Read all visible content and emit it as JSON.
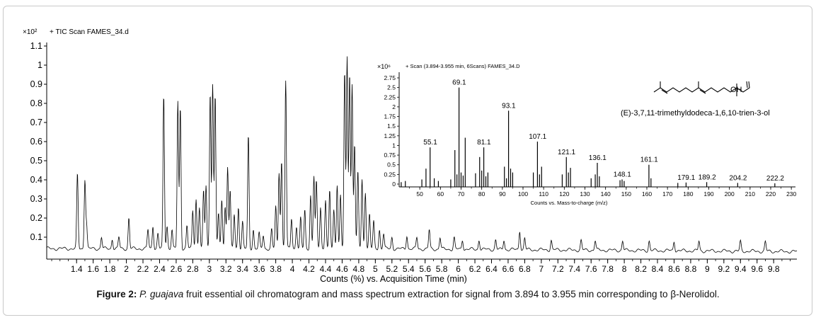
{
  "chart_data": [
    {
      "type": "line",
      "title": "+ TIC Scan FAMES_34.d",
      "y_multiplier": "×10²",
      "xlabel": "Counts (%) vs. Acquisition Time (min)",
      "ylabel": "",
      "xlim": [
        1.04,
        10.08
      ],
      "ylim": [
        0,
        1.15
      ],
      "grid": false,
      "y_ticks": [
        0.1,
        0.2,
        0.3,
        0.4,
        0.5,
        0.6,
        0.7,
        0.8,
        0.9,
        1,
        1.1
      ],
      "x_ticks": [
        1.4,
        1.6,
        1.8,
        2,
        2.2,
        2.4,
        2.6,
        2.8,
        3,
        3.2,
        3.4,
        3.6,
        3.8,
        4,
        4.2,
        4.4,
        4.6,
        4.8,
        5,
        5.2,
        5.4,
        5.6,
        5.8,
        6,
        6.2,
        6.4,
        6.6,
        6.8,
        7,
        7.2,
        7.4,
        7.6,
        7.8,
        8,
        8.2,
        8.4,
        8.6,
        8.8,
        9,
        9.2,
        9.4,
        9.6,
        9.8
      ],
      "baseline": 0.04,
      "peaks": [
        [
          1.41,
          0.39
        ],
        [
          1.5,
          0.36
        ],
        [
          1.52,
          0.12
        ],
        [
          1.7,
          0.06
        ],
        [
          1.83,
          0.05
        ],
        [
          1.91,
          0.06
        ],
        [
          2.03,
          0.16
        ],
        [
          2.26,
          0.1
        ],
        [
          2.32,
          0.12
        ],
        [
          2.38,
          0.08
        ],
        [
          2.45,
          0.8
        ],
        [
          2.49,
          0.12
        ],
        [
          2.55,
          0.1
        ],
        [
          2.62,
          0.77
        ],
        [
          2.65,
          0.74
        ],
        [
          2.73,
          0.12
        ],
        [
          2.8,
          0.2
        ],
        [
          2.84,
          0.26
        ],
        [
          2.88,
          0.22
        ],
        [
          2.93,
          0.3
        ],
        [
          2.96,
          0.33
        ],
        [
          3.01,
          0.82
        ],
        [
          3.04,
          0.86
        ],
        [
          3.07,
          0.8
        ],
        [
          3.11,
          0.18
        ],
        [
          3.15,
          0.26
        ],
        [
          3.19,
          0.22
        ],
        [
          3.22,
          0.43
        ],
        [
          3.25,
          0.3
        ],
        [
          3.3,
          0.18
        ],
        [
          3.35,
          0.22
        ],
        [
          3.4,
          0.14
        ],
        [
          3.47,
          0.59
        ],
        [
          3.53,
          0.1
        ],
        [
          3.6,
          0.08
        ],
        [
          3.65,
          0.07
        ],
        [
          3.75,
          0.1
        ],
        [
          3.8,
          0.22
        ],
        [
          3.84,
          0.4
        ],
        [
          3.87,
          0.46
        ],
        [
          3.92,
          0.88
        ],
        [
          3.99,
          0.16
        ],
        [
          4.05,
          0.12
        ],
        [
          4.1,
          0.16
        ],
        [
          4.15,
          0.2
        ],
        [
          4.22,
          0.28
        ],
        [
          4.26,
          0.38
        ],
        [
          4.29,
          0.35
        ],
        [
          4.34,
          0.22
        ],
        [
          4.4,
          0.26
        ],
        [
          4.45,
          0.3
        ],
        [
          4.5,
          0.2
        ],
        [
          4.54,
          0.34
        ],
        [
          4.58,
          0.28
        ],
        [
          4.63,
          0.92
        ],
        [
          4.66,
          1.0
        ],
        [
          4.69,
          0.92
        ],
        [
          4.72,
          0.86
        ],
        [
          4.75,
          0.55
        ],
        [
          4.79,
          0.4
        ],
        [
          4.84,
          0.36
        ],
        [
          4.88,
          0.3
        ],
        [
          4.93,
          0.18
        ],
        [
          4.98,
          0.14
        ],
        [
          5.05,
          0.1
        ],
        [
          5.1,
          0.08
        ],
        [
          5.2,
          0.06
        ],
        [
          5.38,
          0.07
        ],
        [
          5.5,
          0.06
        ],
        [
          5.65,
          0.1
        ],
        [
          5.78,
          0.06
        ],
        [
          5.95,
          0.06
        ],
        [
          6.05,
          0.05
        ],
        [
          6.25,
          0.05
        ],
        [
          6.45,
          0.05
        ],
        [
          6.55,
          0.05
        ],
        [
          6.74,
          0.1
        ],
        [
          6.8,
          0.06
        ],
        [
          7.12,
          0.05
        ],
        [
          7.48,
          0.05
        ],
        [
          7.65,
          0.05
        ],
        [
          7.98,
          0.05
        ],
        [
          8.3,
          0.05
        ],
        [
          8.6,
          0.05
        ],
        [
          8.9,
          0.05
        ],
        [
          9.4,
          0.05
        ],
        [
          9.7,
          0.05
        ]
      ]
    },
    {
      "type": "bar",
      "title": "+ Scan (3.894-3.955 min, 6Scans) FAMES_34.D",
      "y_multiplier": "×10⁶",
      "xlabel": "Counts vs. Mass-to-charge (m/z)",
      "ylabel": "",
      "xlim": [
        40,
        232
      ],
      "ylim": [
        0,
        2.85
      ],
      "grid": false,
      "y_ticks": [
        0,
        0.25,
        0.5,
        0.75,
        1,
        1.25,
        1.5,
        1.75,
        2,
        2.25,
        2.5,
        2.75
      ],
      "x_ticks": [
        50,
        60,
        70,
        80,
        90,
        100,
        110,
        120,
        130,
        140,
        150,
        160,
        170,
        180,
        190,
        200,
        210,
        220,
        230
      ],
      "bars": [
        [
          41,
          0.05
        ],
        [
          43,
          0.08
        ],
        [
          51,
          0.12
        ],
        [
          53,
          0.4
        ],
        [
          55,
          0.95
        ],
        [
          57,
          0.15
        ],
        [
          59,
          0.08
        ],
        [
          65,
          0.12
        ],
        [
          67,
          0.88
        ],
        [
          68,
          0.25
        ],
        [
          69,
          2.5
        ],
        [
          70,
          0.3
        ],
        [
          71,
          0.22
        ],
        [
          72,
          1.2
        ],
        [
          77,
          0.28
        ],
        [
          79,
          0.7
        ],
        [
          80,
          0.35
        ],
        [
          81,
          0.95
        ],
        [
          82,
          0.2
        ],
        [
          83,
          0.3
        ],
        [
          91,
          0.45
        ],
        [
          92,
          0.15
        ],
        [
          93,
          1.9
        ],
        [
          94,
          0.4
        ],
        [
          95,
          0.3
        ],
        [
          105,
          0.3
        ],
        [
          107,
          1.1
        ],
        [
          108,
          0.25
        ],
        [
          109,
          0.45
        ],
        [
          119,
          0.25
        ],
        [
          121,
          0.7
        ],
        [
          122,
          0.3
        ],
        [
          123,
          0.42
        ],
        [
          133,
          0.15
        ],
        [
          135,
          0.25
        ],
        [
          136,
          0.55
        ],
        [
          137,
          0.2
        ],
        [
          147,
          0.1
        ],
        [
          148,
          0.12
        ],
        [
          149,
          0.08
        ],
        [
          161,
          0.5
        ],
        [
          162,
          0.15
        ],
        [
          175,
          0.03
        ],
        [
          179,
          0.04
        ],
        [
          189,
          0.05
        ],
        [
          204,
          0.03
        ],
        [
          222,
          0.02
        ]
      ],
      "peak_labels": [
        {
          "label": "55.1",
          "mz": 55.1,
          "value": 0.95
        },
        {
          "label": "69.1",
          "mz": 69.1,
          "value": 2.5
        },
        {
          "label": "81.1",
          "mz": 81.1,
          "value": 0.95
        },
        {
          "label": "93.1",
          "mz": 93.1,
          "value": 1.9
        },
        {
          "label": "107.1",
          "mz": 107.1,
          "value": 1.1
        },
        {
          "label": "121.1",
          "mz": 121.1,
          "value": 0.7
        },
        {
          "label": "136.1",
          "mz": 136.1,
          "value": 0.55
        },
        {
          "label": "148.1",
          "mz": 148.1,
          "value": 0.12
        },
        {
          "label": "161.1",
          "mz": 161.1,
          "value": 0.5
        },
        {
          "label": "179.1",
          "mz": 179.1,
          "value": 0.04
        },
        {
          "label": "189.2",
          "mz": 189.2,
          "value": 0.05
        },
        {
          "label": "204.2",
          "mz": 204.2,
          "value": 0.03
        },
        {
          "label": "222.2",
          "mz": 222.2,
          "value": 0.02
        }
      ]
    }
  ],
  "structure": {
    "oh_label": "OH",
    "compound_name": "(E)-3,7,11-trimethyldodeca-1,6,10-trien-3-ol"
  },
  "caption": {
    "label": "Figure 2:",
    "species": "P. guajava",
    "text": " fruit essential oil chromatogram and mass spectrum extraction for signal from 3.894 to 3.955 min corresponding to β-Nerolidol."
  },
  "colors": {
    "line": "#000000",
    "frame": "#c9c9c9"
  }
}
